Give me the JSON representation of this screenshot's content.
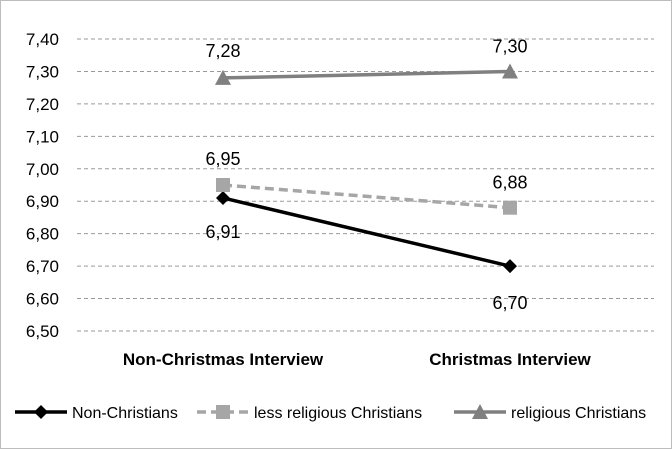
{
  "chart_data": {
    "type": "line",
    "categories": [
      "Non-Christmas Interview",
      "Christmas Interview"
    ],
    "ylim": [
      6.5,
      7.4
    ],
    "yticks": [
      "6,50",
      "6,60",
      "6,70",
      "6,80",
      "6,90",
      "7,00",
      "7,10",
      "7,20",
      "7,30",
      "7,40"
    ],
    "grid": true,
    "legend_position": "bottom",
    "series": [
      {
        "name": "Non-Christians",
        "values": [
          6.91,
          6.7
        ],
        "labels": [
          "6,91",
          "6,70"
        ],
        "color": "#000000",
        "line_style": "solid",
        "marker": "diamond"
      },
      {
        "name": "less religious Christians",
        "values": [
          6.95,
          6.88
        ],
        "labels": [
          "6,95",
          "6,88"
        ],
        "color": "#a6a6a6",
        "line_style": "dashed",
        "marker": "square"
      },
      {
        "name": "religious Christians",
        "values": [
          7.28,
          7.3
        ],
        "labels": [
          "7,28",
          "7,30"
        ],
        "color": "#808080",
        "line_style": "solid",
        "marker": "triangle"
      }
    ]
  }
}
